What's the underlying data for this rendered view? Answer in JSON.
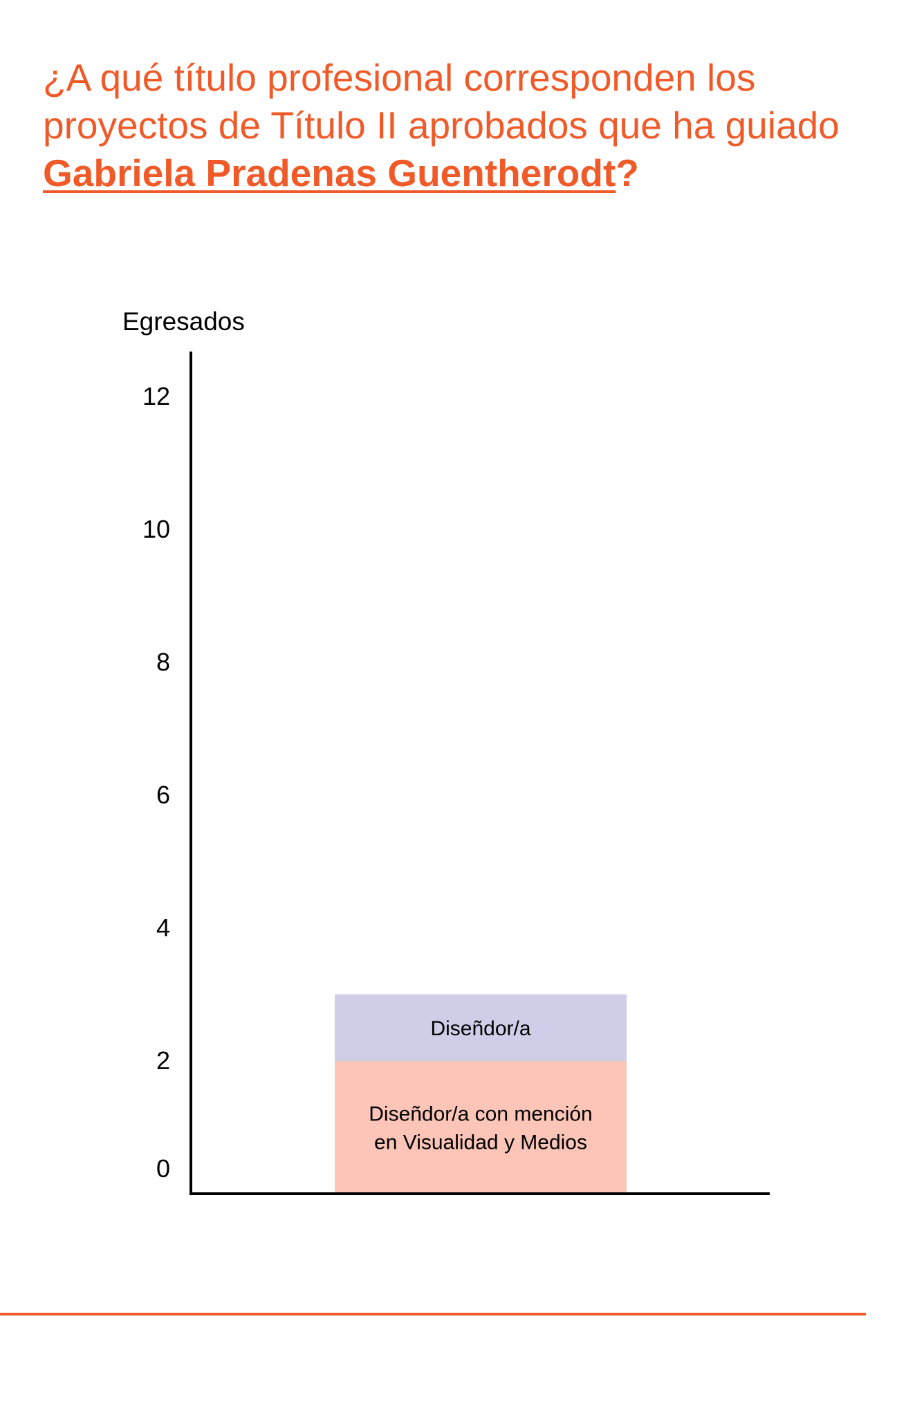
{
  "question": {
    "line1": "¿A qué título profesional corresponden los",
    "line2": "proyectos de Título II aprobados que ha guiado",
    "name": "Gabriela Pradenas Guentherodt",
    "end": "?"
  },
  "colors": {
    "accent": "#f05a28",
    "axis": "#000000",
    "segment_lower": "#fcc5b8",
    "segment_upper": "#cfcde8"
  },
  "chart_data": {
    "type": "bar",
    "stacked": true,
    "ylabel": "Egresados",
    "xlabel": "",
    "ylim": [
      0,
      13
    ],
    "yticks": [
      0,
      2,
      4,
      6,
      8,
      10,
      12
    ],
    "grid": false,
    "categories": [
      ""
    ],
    "series": [
      {
        "name": "Diseñdor/a con mención en Visualidad y Medios",
        "label_lines": [
          "Diseñdor/a con mención",
          "en Visualidad y Medios"
        ],
        "values": [
          2
        ]
      },
      {
        "name": "Diseñdor/a",
        "label_lines": [
          "Diseñdor/a"
        ],
        "values": [
          1
        ]
      }
    ]
  }
}
